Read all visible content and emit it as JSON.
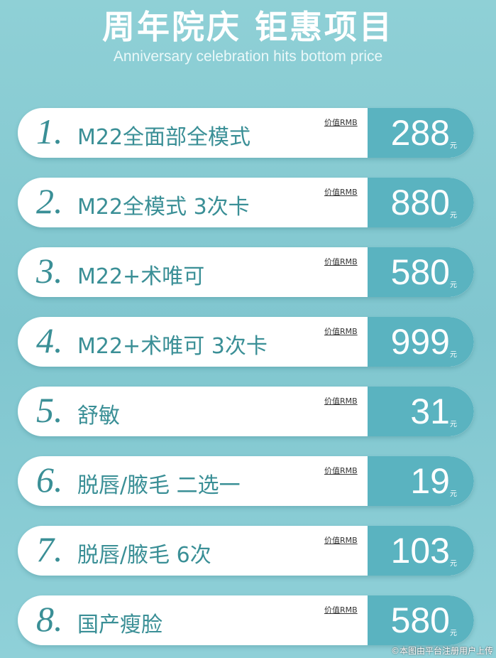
{
  "header": {
    "title": "周年院庆  钜惠项目",
    "subtitle": "Anniversary celebration hits bottom price"
  },
  "value_label": "价值RMB",
  "currency": "元",
  "items": [
    {
      "num": "1.",
      "name": "M22全面部全模式",
      "price": "288"
    },
    {
      "num": "2.",
      "name": "M22全模式 3次卡",
      "price": "880"
    },
    {
      "num": "3.",
      "name": "M22+术唯可",
      "price": "580"
    },
    {
      "num": "4.",
      "name": "M22+术唯可 3次卡",
      "price": "999"
    },
    {
      "num": "5.",
      "name": "舒敏",
      "price": "31"
    },
    {
      "num": "6.",
      "name": "脱唇/腋毛 二选一",
      "price": "19"
    },
    {
      "num": "7.",
      "name": "脱唇/腋毛 6次",
      "price": "103"
    },
    {
      "num": "8.",
      "name": "国产瘦脸",
      "price": "580"
    }
  ],
  "watermark": "©本图由平台注册用户上传"
}
